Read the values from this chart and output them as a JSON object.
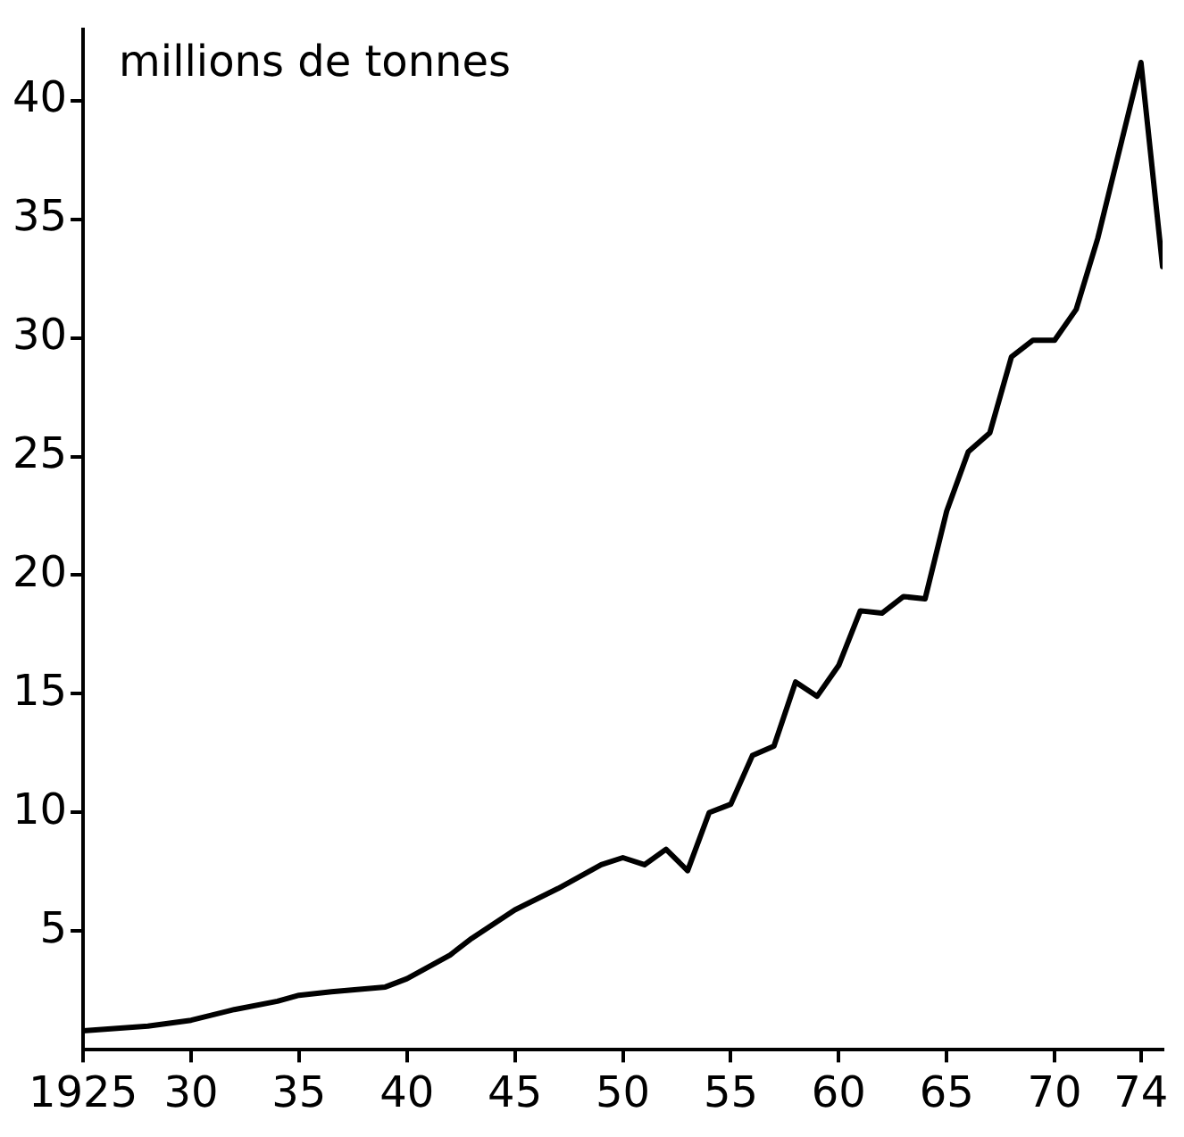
{
  "chart_data": {
    "type": "line",
    "ylabel": "millions de tonnes",
    "x": [
      1925,
      1928,
      1930,
      1932,
      1934,
      1935,
      1936.5,
      1939,
      1940,
      1942,
      1943,
      1945,
      1947,
      1949,
      1950,
      1951,
      1952,
      1953,
      1954,
      1955,
      1956,
      1957,
      1958,
      1959,
      1960,
      1961,
      1962,
      1963,
      1964,
      1965,
      1966,
      1967,
      1968,
      1969,
      1970,
      1971,
      1972,
      1974,
      1975
    ],
    "series": [
      {
        "color": "#000000",
        "values": [
          0.8,
          1.0,
          1.25,
          1.7,
          2.05,
          2.3,
          2.45,
          2.65,
          3.0,
          4.0,
          4.7,
          5.9,
          6.8,
          7.8,
          8.1,
          7.8,
          8.45,
          7.55,
          10.0,
          10.35,
          12.4,
          12.8,
          15.5,
          14.9,
          16.2,
          18.5,
          18.4,
          19.1,
          19.0,
          22.7,
          25.2,
          26.0,
          29.2,
          29.9,
          29.9,
          31.2,
          34.2,
          41.6,
          33.0
        ]
      }
    ],
    "xlim": [
      1925,
      1975
    ],
    "xticks": [
      1925,
      {
        "value": 1930,
        "label": "30"
      },
      {
        "value": 1935,
        "label": "35"
      },
      {
        "value": 1940,
        "label": "40"
      },
      {
        "value": 1945,
        "label": "45"
      },
      {
        "value": 1950,
        "label": "50"
      },
      {
        "value": 1955,
        "label": "55"
      },
      {
        "value": 1960,
        "label": "60"
      },
      {
        "value": 1965,
        "label": "65"
      },
      {
        "value": 1970,
        "label": "70"
      },
      {
        "value": 1974,
        "label": "74"
      }
    ],
    "ylim": [
      0,
      43
    ],
    "yticks": [
      5,
      10,
      15,
      20,
      25,
      30,
      35,
      40
    ],
    "grid": false,
    "legend": false,
    "marker": "none",
    "line_style": "solid"
  }
}
